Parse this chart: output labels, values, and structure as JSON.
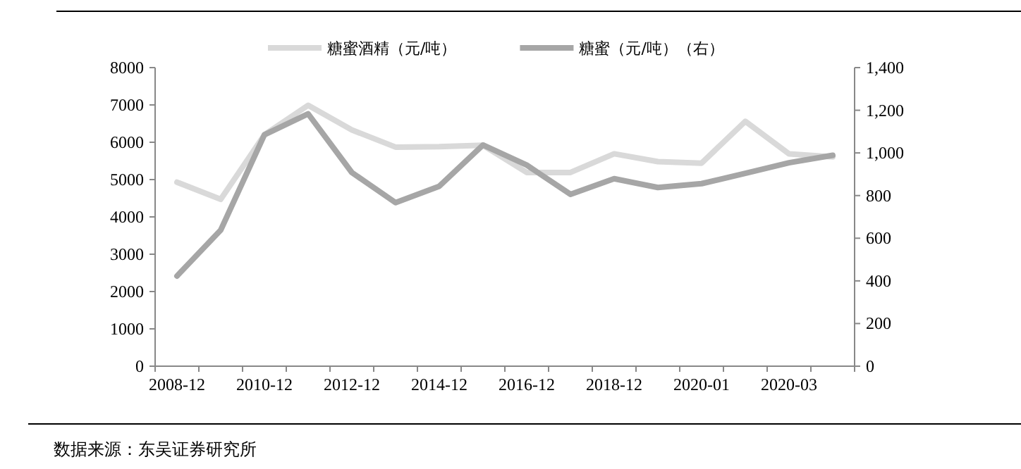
{
  "chart_data": {
    "type": "line",
    "categories": [
      "2008-12",
      null,
      "2010-12",
      null,
      "2012-12",
      null,
      "2014-12",
      null,
      "2016-12",
      null,
      "2018-12",
      null,
      "2020-01",
      null,
      "2020-03",
      null
    ],
    "series": [
      {
        "name": "糖蜜酒精（元/吨）",
        "color": "#d9d9d9",
        "values": [
          4930,
          4470,
          6200,
          6990,
          6330,
          5870,
          5880,
          5920,
          5190,
          5190,
          5690,
          5480,
          5440,
          6560,
          5690,
          5610
        ]
      },
      {
        "name": "糖蜜（元/吨）（右）",
        "color": "#a6a6a6",
        "axis": "y2",
        "values": [
          423,
          638,
          1085,
          1183,
          908,
          767,
          844,
          1037,
          943,
          806,
          879,
          838,
          856,
          904,
          954,
          989
        ]
      }
    ],
    "ylim": [
      0,
      8000
    ],
    "yticks": [
      0,
      1000,
      2000,
      3000,
      4000,
      5000,
      6000,
      7000,
      8000
    ],
    "y2lim": [
      0,
      1400
    ],
    "y2ticks": [
      {
        "value": 0,
        "label": "0"
      },
      {
        "value": 200,
        "label": "200"
      },
      {
        "value": 400,
        "label": "400"
      },
      {
        "value": 600,
        "label": "600"
      },
      {
        "value": 800,
        "label": "800"
      },
      {
        "value": 1000,
        "label": "1,000"
      },
      {
        "value": 1200,
        "label": "1,200"
      },
      {
        "value": 1400,
        "label": "1,400"
      }
    ],
    "legend": "top",
    "grid": false,
    "marker": "none",
    "line_style": "solid",
    "annotations": [
      "数据来源：东吴证券研究所"
    ]
  }
}
